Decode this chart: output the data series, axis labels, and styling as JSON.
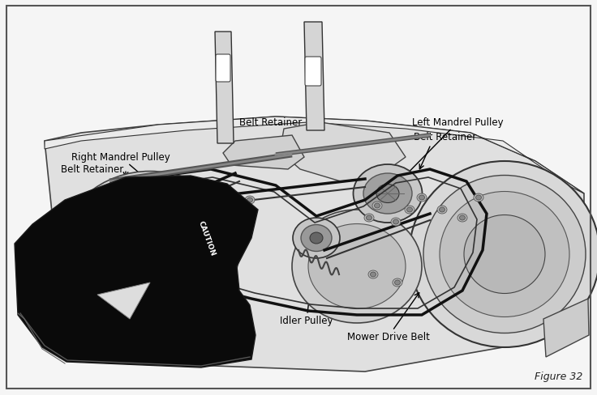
{
  "figure_label": "Figure 32",
  "background_color": "#f5f5f5",
  "border_color": "#555555",
  "fig_width": 7.36,
  "fig_height": 4.89,
  "dpi": 100,
  "labels": {
    "right_mandrel_pulley": "Right Mandrel Pulley",
    "belt_retainer_left": "Belt Retainer",
    "belt_retainer_center": "Belt Retainer",
    "left_mandrel_pulley": "Left Mandrel Pulley",
    "belt_retainer_right": "Belt Retainer",
    "idler_pulley": "Idler Pulley",
    "mower_drive_belt": "Mower Drive Belt"
  },
  "colors": {
    "deck_top": "#d8d8d8",
    "deck_mid": "#c8c8c8",
    "deck_dark": "#b0b0b0",
    "deck_edge": "#333333",
    "pulley_outer": "#c0c0c0",
    "pulley_mid": "#a8a8a8",
    "pulley_hub": "#787878",
    "belt_color": "#222222",
    "bracket_fill": "#d0d0d0",
    "black_guard": "#111111",
    "white_bg": "#ffffff",
    "wheel_outer": "#cccccc",
    "wheel_inner": "#b5b5b5"
  }
}
